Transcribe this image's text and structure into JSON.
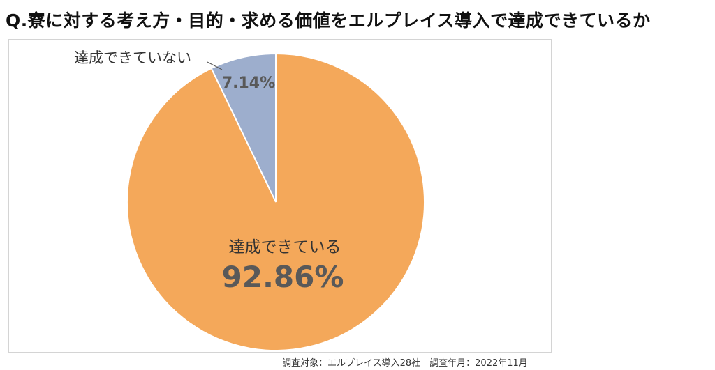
{
  "title": "Q.寮に対する考え方・目的・求める価値をエルプレイス導入で達成できているか",
  "footnote": "調査対象：エルプレイス導入28社　調査年月：2022年11月",
  "chart_data": {
    "type": "pie",
    "slices": [
      {
        "label": "達成できている",
        "value": 92.86,
        "display": "92.86%",
        "color": "#F4A85A"
      },
      {
        "label": "達成できていない",
        "value": 7.14,
        "display": "7.14%",
        "color": "#9DAECD"
      }
    ],
    "start": "12 o'clock",
    "direction": "clockwise",
    "legend": "none",
    "data_labels": "inside with category name; small slice label outside with leader line"
  }
}
